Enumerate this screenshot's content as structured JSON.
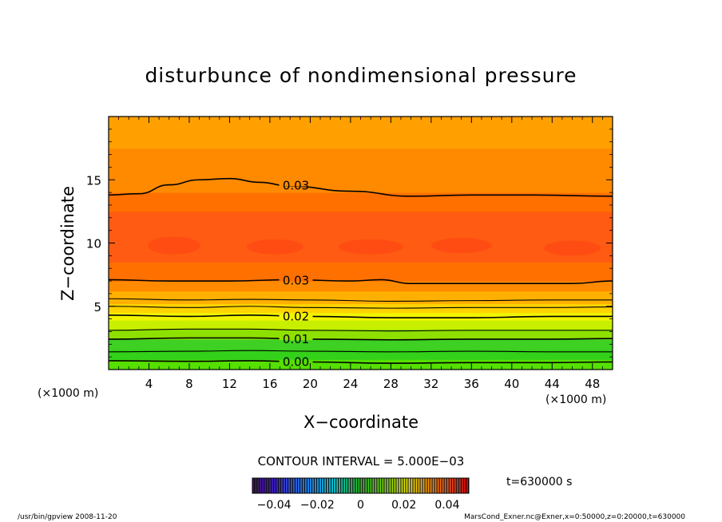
{
  "chart_data": {
    "type": "heatmap",
    "title": "disturbunce of nondimensional pressure",
    "xlabel": "X−coordinate",
    "ylabel": "Z−coordinate",
    "x_unit_left": "(×1000 m)",
    "x_unit_right": "(×1000 m)",
    "xlim": [
      0,
      50
    ],
    "ylim": [
      0,
      20
    ],
    "x_ticks": [
      4,
      8,
      12,
      16,
      20,
      24,
      28,
      32,
      36,
      40,
      44,
      48
    ],
    "x_tick_labels": [
      "4",
      "8",
      "12",
      "16",
      "20",
      "24",
      "28",
      "32",
      "36",
      "40",
      "44",
      "48"
    ],
    "y_ticks": [
      5,
      10,
      15
    ],
    "y_tick_labels": [
      "5",
      "10",
      "15"
    ],
    "grid": false,
    "contour_interval_text": "CONTOUR INTERVAL = 5.000E−03",
    "time_label": "t=630000 s",
    "colorbar": {
      "range": [
        -0.05,
        0.05
      ],
      "tick_values": [
        -0.04,
        -0.02,
        0,
        0.02,
        0.04
      ],
      "tick_labels": [
        "−0.04",
        "−0.02",
        "0",
        "0.02",
        "0.04"
      ]
    },
    "color_bands": [
      {
        "z_from": 0.0,
        "z_to": 0.8,
        "value": 0.0,
        "color": "#55e000"
      },
      {
        "z_from": 0.8,
        "z_to": 1.6,
        "value": 0.005,
        "color": "#33d11a"
      },
      {
        "z_from": 1.6,
        "z_to": 2.4,
        "value": 0.01,
        "color": "#3ed023"
      },
      {
        "z_from": 2.4,
        "z_to": 3.2,
        "value": 0.012,
        "color": "#8ee000"
      },
      {
        "z_from": 3.2,
        "z_to": 3.9,
        "value": 0.015,
        "color": "#c8ef00"
      },
      {
        "z_from": 3.9,
        "z_to": 4.5,
        "value": 0.02,
        "color": "#f0f400"
      },
      {
        "z_from": 4.5,
        "z_to": 5.2,
        "value": 0.022,
        "color": "#ffd400"
      },
      {
        "z_from": 5.2,
        "z_to": 6.2,
        "value": 0.025,
        "color": "#ffb000"
      },
      {
        "z_from": 6.2,
        "z_to": 7.0,
        "value": 0.028,
        "color": "#ff8a00"
      },
      {
        "z_from": 7.0,
        "z_to": 8.5,
        "value": 0.031,
        "color": "#ff7000"
      },
      {
        "z_from": 8.5,
        "z_to": 12.5,
        "value": 0.034,
        "color": "#ff5b12"
      },
      {
        "z_from": 12.5,
        "z_to": 14.0,
        "value": 0.031,
        "color": "#ff7000"
      },
      {
        "z_from": 14.0,
        "z_to": 17.5,
        "value": 0.028,
        "color": "#ff8a00"
      },
      {
        "z_from": 17.5,
        "z_to": 20.0,
        "value": 0.025,
        "color": "#ffa000"
      }
    ],
    "contours": [
      {
        "label": "0.00",
        "label_x": 17.0,
        "points": [
          [
            0,
            0.7
          ],
          [
            8,
            0.65
          ],
          [
            14,
            0.7
          ],
          [
            20,
            0.6
          ],
          [
            28,
            0.5
          ],
          [
            36,
            0.55
          ],
          [
            44,
            0.55
          ],
          [
            50,
            0.6
          ]
        ]
      },
      {
        "label": "",
        "points": [
          [
            0,
            1.4
          ],
          [
            8,
            1.45
          ],
          [
            14,
            1.5
          ],
          [
            20,
            1.45
          ],
          [
            28,
            1.4
          ],
          [
            36,
            1.45
          ],
          [
            44,
            1.4
          ],
          [
            50,
            1.4
          ]
        ]
      },
      {
        "label": "0.01",
        "label_x": 17.0,
        "points": [
          [
            0,
            2.4
          ],
          [
            8,
            2.5
          ],
          [
            14,
            2.5
          ],
          [
            20,
            2.4
          ],
          [
            28,
            2.35
          ],
          [
            36,
            2.4
          ],
          [
            44,
            2.4
          ],
          [
            50,
            2.45
          ]
        ]
      },
      {
        "label": "",
        "points": [
          [
            0,
            3.1
          ],
          [
            8,
            3.2
          ],
          [
            14,
            3.2
          ],
          [
            20,
            3.1
          ],
          [
            28,
            3.05
          ],
          [
            36,
            3.1
          ],
          [
            44,
            3.1
          ],
          [
            50,
            3.1
          ]
        ]
      },
      {
        "label": "0.02",
        "label_x": 17.0,
        "points": [
          [
            0,
            4.3
          ],
          [
            8,
            4.2
          ],
          [
            14,
            4.3
          ],
          [
            20,
            4.2
          ],
          [
            28,
            4.1
          ],
          [
            36,
            4.1
          ],
          [
            44,
            4.2
          ],
          [
            50,
            4.2
          ]
        ]
      },
      {
        "label": "",
        "points": [
          [
            0,
            5.0
          ],
          [
            8,
            4.9
          ],
          [
            14,
            5.0
          ],
          [
            20,
            4.9
          ],
          [
            28,
            4.85
          ],
          [
            36,
            4.9
          ],
          [
            44,
            4.9
          ],
          [
            50,
            4.95
          ]
        ]
      },
      {
        "label": "",
        "points": [
          [
            0,
            5.6
          ],
          [
            8,
            5.5
          ],
          [
            14,
            5.55
          ],
          [
            20,
            5.5
          ],
          [
            28,
            5.4
          ],
          [
            36,
            5.45
          ],
          [
            44,
            5.5
          ],
          [
            50,
            5.5
          ]
        ]
      },
      {
        "label": "0.03",
        "label_x": 17.0,
        "points": [
          [
            0,
            7.1
          ],
          [
            6,
            7.0
          ],
          [
            12,
            7.0
          ],
          [
            18,
            7.1
          ],
          [
            24,
            7.0
          ],
          [
            27,
            7.1
          ],
          [
            30,
            6.8
          ],
          [
            36,
            6.8
          ],
          [
            42,
            6.8
          ],
          [
            46,
            6.8
          ],
          [
            50,
            7.0
          ]
        ]
      },
      {
        "label": "0.03",
        "label_x": 17.0,
        "points": [
          [
            0,
            13.8
          ],
          [
            3,
            13.9
          ],
          [
            6,
            14.6
          ],
          [
            9,
            15.0
          ],
          [
            12,
            15.1
          ],
          [
            15,
            14.8
          ],
          [
            18,
            14.5
          ],
          [
            24,
            14.1
          ],
          [
            30,
            13.7
          ],
          [
            36,
            13.8
          ],
          [
            42,
            13.8
          ],
          [
            50,
            13.7
          ]
        ]
      }
    ],
    "blobs": [
      {
        "x": 6.5,
        "z": 9.8,
        "rx": 2.6,
        "rz": 0.7
      },
      {
        "x": 16.5,
        "z": 9.7,
        "rx": 2.8,
        "rz": 0.6
      },
      {
        "x": 26.0,
        "z": 9.7,
        "rx": 3.2,
        "rz": 0.6
      },
      {
        "x": 35.0,
        "z": 9.8,
        "rx": 3.0,
        "rz": 0.6
      },
      {
        "x": 46.0,
        "z": 9.6,
        "rx": 2.8,
        "rz": 0.6
      }
    ],
    "blob_color": "#ff4a14"
  },
  "footer": {
    "left": "/usr/bin/gpview   2008-11-20",
    "right": "MarsCond_Exner.nc@Exner,x=0:50000,z=0:20000,t=630000"
  }
}
